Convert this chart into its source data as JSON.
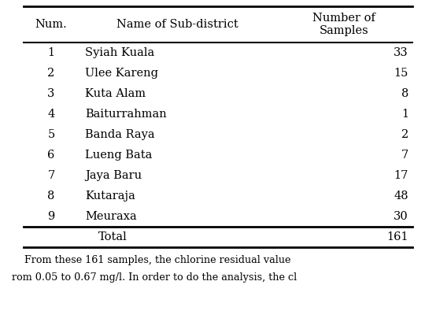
{
  "col_headers": [
    "Num.",
    "Name of Sub-district",
    "Number of\nSamples"
  ],
  "rows": [
    [
      "1",
      "Syiah Kuala",
      "33"
    ],
    [
      "2",
      "Ulee Kareng",
      "15"
    ],
    [
      "3",
      "Kuta Alam",
      "8"
    ],
    [
      "4",
      "Baiturrahman",
      "1"
    ],
    [
      "5",
      "Banda Raya",
      "2"
    ],
    [
      "6",
      "Lueng Bata",
      "7"
    ],
    [
      "7",
      "Jaya Baru",
      "17"
    ],
    [
      "8",
      "Kutaraja",
      "48"
    ],
    [
      "9",
      "Meuraxa",
      "30"
    ]
  ],
  "total_row": [
    "",
    "Total",
    "161"
  ],
  "background_color": "#ffffff",
  "text_color": "#000000",
  "font_size": 10.5,
  "footer_text": "    From these 161 samples, the chlorine residual value\nrom 0.05 to 0.67 mg/l. In order to do the analysis, the cl"
}
